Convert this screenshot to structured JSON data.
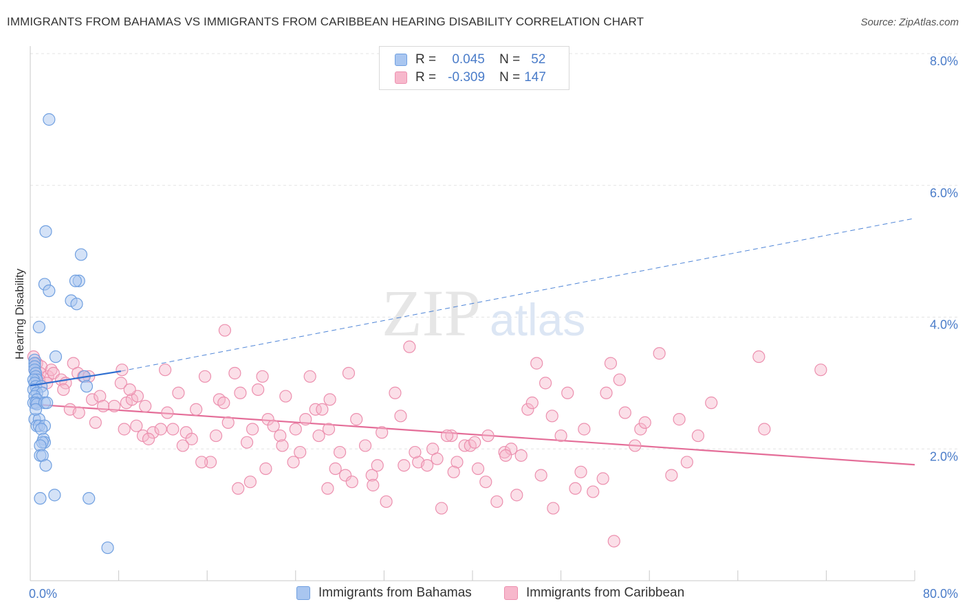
{
  "title": "IMMIGRANTS FROM BAHAMAS VS IMMIGRANTS FROM CARIBBEAN HEARING DISABILITY CORRELATION CHART",
  "source": "Source: ZipAtlas.com",
  "watermark": {
    "zip": "ZIP",
    "atlas": "atlas"
  },
  "legend": {
    "r_label": "R =",
    "n_label": "N =",
    "rows": [
      {
        "r": "0.045",
        "n": "52",
        "color": "#a9c6f0",
        "border": "#6f9fe0"
      },
      {
        "r": "-0.309",
        "n": "147",
        "color": "#f7b8cc",
        "border": "#ec8fae"
      }
    ]
  },
  "bottom_legend": {
    "bahamas": "Immigrants from Bahamas",
    "caribbean": "Immigrants from Caribbean"
  },
  "colors": {
    "blue_fill": "#a9c6f0",
    "blue_stroke": "#6f9fe0",
    "blue_line": "#2f6fd0",
    "pink_fill": "#f7b8cc",
    "pink_stroke": "#ec8fae",
    "pink_line": "#e46d98",
    "tick_text": "#4a7cc9"
  },
  "chart_data": {
    "type": "scatter",
    "ylabel": "Hearing Disability",
    "x_ticks": [
      "0.0%",
      "80.0%"
    ],
    "y_ticks": [
      "2.0%",
      "4.0%",
      "6.0%",
      "8.0%"
    ],
    "xlim": [
      0,
      80
    ],
    "ylim": [
      0,
      8
    ],
    "grid": true,
    "legend_position": "top-center",
    "series": [
      {
        "name": "Immigrants from Bahamas",
        "points": [
          [
            1.7,
            7.0
          ],
          [
            1.4,
            5.3
          ],
          [
            4.6,
            4.95
          ],
          [
            1.3,
            4.5
          ],
          [
            4.4,
            4.55
          ],
          [
            4.1,
            4.55
          ],
          [
            1.7,
            4.4
          ],
          [
            3.7,
            4.25
          ],
          [
            4.2,
            4.2
          ],
          [
            0.8,
            3.85
          ],
          [
            2.3,
            3.4
          ],
          [
            0.4,
            3.35
          ],
          [
            0.4,
            3.3
          ],
          [
            0.4,
            3.25
          ],
          [
            0.4,
            3.2
          ],
          [
            0.5,
            3.15
          ],
          [
            0.5,
            3.1
          ],
          [
            0.6,
            3.05
          ],
          [
            0.3,
            3.05
          ],
          [
            0.4,
            3.0
          ],
          [
            0.5,
            2.95
          ],
          [
            1.0,
            2.95
          ],
          [
            4.9,
            3.1
          ],
          [
            5.1,
            2.95
          ],
          [
            0.3,
            2.9
          ],
          [
            0.6,
            2.85
          ],
          [
            1.1,
            2.85
          ],
          [
            0.4,
            2.8
          ],
          [
            0.6,
            2.75
          ],
          [
            0.3,
            2.7
          ],
          [
            0.5,
            2.7
          ],
          [
            0.6,
            2.68
          ],
          [
            1.3,
            2.7
          ],
          [
            1.5,
            2.7
          ],
          [
            0.4,
            2.45
          ],
          [
            0.8,
            2.45
          ],
          [
            0.6,
            2.35
          ],
          [
            0.8,
            2.35
          ],
          [
            1.3,
            2.35
          ],
          [
            1.0,
            2.3
          ],
          [
            1.2,
            2.15
          ],
          [
            1.3,
            2.1
          ],
          [
            1.1,
            2.1
          ],
          [
            0.9,
            2.05
          ],
          [
            0.9,
            1.9
          ],
          [
            1.1,
            1.9
          ],
          [
            1.4,
            1.75
          ],
          [
            2.2,
            1.3
          ],
          [
            0.9,
            1.25
          ],
          [
            5.3,
            1.25
          ],
          [
            7.0,
            0.5
          ],
          [
            0.5,
            2.6
          ]
        ],
        "trend": {
          "x": [
            0,
            8.2
          ],
          "y": [
            2.96,
            3.18
          ],
          "dashed_extension": {
            "x": [
              8.2,
              80
            ],
            "y": [
              3.18,
              5.5
            ]
          }
        }
      },
      {
        "name": "Immigrants from Caribbean",
        "points": [
          [
            0.3,
            3.4
          ],
          [
            0.6,
            3.3
          ],
          [
            1.0,
            3.25
          ],
          [
            0.4,
            3.2
          ],
          [
            0.9,
            3.15
          ],
          [
            1.6,
            3.1
          ],
          [
            0.8,
            3.05
          ],
          [
            1.9,
            3.2
          ],
          [
            2.1,
            3.15
          ],
          [
            1.5,
            3.0
          ],
          [
            2.8,
            3.05
          ],
          [
            3.2,
            3.0
          ],
          [
            3.9,
            3.3
          ],
          [
            4.3,
            3.15
          ],
          [
            4.8,
            3.1
          ],
          [
            5.3,
            3.1
          ],
          [
            8.3,
            3.2
          ],
          [
            3.6,
            2.6
          ],
          [
            3.0,
            2.9
          ],
          [
            5.6,
            2.75
          ],
          [
            6.3,
            2.8
          ],
          [
            6.6,
            2.65
          ],
          [
            4.4,
            2.55
          ],
          [
            5.9,
            2.4
          ],
          [
            7.6,
            2.65
          ],
          [
            8.2,
            3.0
          ],
          [
            8.7,
            2.7
          ],
          [
            9.2,
            2.75
          ],
          [
            9.7,
            2.8
          ],
          [
            8.5,
            2.3
          ],
          [
            9.6,
            2.35
          ],
          [
            10.2,
            2.2
          ],
          [
            11.1,
            2.25
          ],
          [
            10.7,
            2.15
          ],
          [
            10.4,
            2.65
          ],
          [
            11.8,
            2.3
          ],
          [
            12.2,
            3.2
          ],
          [
            12.9,
            2.3
          ],
          [
            13.4,
            2.85
          ],
          [
            14.1,
            2.25
          ],
          [
            14.6,
            2.15
          ],
          [
            15.0,
            2.6
          ],
          [
            15.8,
            3.1
          ],
          [
            16.8,
            2.2
          ],
          [
            17.1,
            2.75
          ],
          [
            17.5,
            2.7
          ],
          [
            17.9,
            2.4
          ],
          [
            18.5,
            3.15
          ],
          [
            19.0,
            2.85
          ],
          [
            19.6,
            2.1
          ],
          [
            20.1,
            2.3
          ],
          [
            20.6,
            2.9
          ],
          [
            21.0,
            3.1
          ],
          [
            21.5,
            2.45
          ],
          [
            22.0,
            2.35
          ],
          [
            22.6,
            2.2
          ],
          [
            23.1,
            2.8
          ],
          [
            24.0,
            2.3
          ],
          [
            24.4,
            1.95
          ],
          [
            25.3,
            3.1
          ],
          [
            25.8,
            2.6
          ],
          [
            26.4,
            2.6
          ],
          [
            27.0,
            2.3
          ],
          [
            27.6,
            1.7
          ],
          [
            27.1,
            2.75
          ],
          [
            28.0,
            1.95
          ],
          [
            28.8,
            3.15
          ],
          [
            29.5,
            2.45
          ],
          [
            30.3,
            2.05
          ],
          [
            30.9,
            1.6
          ],
          [
            31.4,
            1.75
          ],
          [
            32.2,
            1.2
          ],
          [
            33.0,
            2.85
          ],
          [
            33.5,
            2.5
          ],
          [
            34.3,
            3.55
          ],
          [
            35.1,
            1.8
          ],
          [
            35.9,
            1.75
          ],
          [
            36.4,
            2.0
          ],
          [
            37.2,
            1.1
          ],
          [
            38.1,
            2.2
          ],
          [
            38.6,
            1.8
          ],
          [
            39.3,
            2.05
          ],
          [
            39.8,
            2.05
          ],
          [
            40.5,
            1.7
          ],
          [
            41.4,
            2.2
          ],
          [
            42.2,
            1.2
          ],
          [
            42.9,
            1.95
          ],
          [
            43.5,
            2.0
          ],
          [
            44.0,
            1.3
          ],
          [
            44.4,
            1.9
          ],
          [
            45.0,
            2.6
          ],
          [
            45.4,
            2.7
          ],
          [
            45.8,
            3.3
          ],
          [
            46.6,
            3.0
          ],
          [
            47.2,
            2.5
          ],
          [
            48.0,
            2.2
          ],
          [
            48.6,
            2.85
          ],
          [
            49.3,
            1.4
          ],
          [
            49.8,
            1.65
          ],
          [
            50.1,
            2.3
          ],
          [
            51.8,
            1.55
          ],
          [
            52.1,
            2.85
          ],
          [
            52.5,
            3.3
          ],
          [
            53.3,
            3.05
          ],
          [
            53.8,
            2.55
          ],
          [
            54.7,
            2.05
          ],
          [
            55.2,
            2.3
          ],
          [
            55.6,
            2.4
          ],
          [
            56.9,
            3.45
          ],
          [
            58.0,
            1.6
          ],
          [
            58.7,
            2.45
          ],
          [
            59.4,
            1.8
          ],
          [
            60.4,
            2.2
          ],
          [
            61.6,
            2.7
          ],
          [
            65.9,
            3.4
          ],
          [
            66.4,
            2.3
          ],
          [
            71.5,
            3.2
          ],
          [
            17.6,
            3.8
          ],
          [
            16.3,
            1.8
          ],
          [
            18.8,
            1.4
          ],
          [
            19.9,
            1.5
          ],
          [
            21.3,
            1.7
          ],
          [
            23.8,
            1.8
          ],
          [
            26.9,
            1.4
          ],
          [
            28.5,
            1.6
          ],
          [
            29.1,
            1.5
          ],
          [
            31.0,
            1.45
          ],
          [
            33.8,
            1.75
          ],
          [
            36.8,
            1.85
          ],
          [
            38.3,
            1.65
          ],
          [
            41.2,
            1.5
          ],
          [
            43.0,
            1.9
          ],
          [
            46.2,
            1.6
          ],
          [
            47.3,
            1.1
          ],
          [
            50.9,
            1.35
          ],
          [
            52.8,
            0.6
          ],
          [
            9.0,
            2.9
          ],
          [
            12.4,
            2.55
          ],
          [
            13.8,
            2.05
          ],
          [
            15.5,
            1.8
          ],
          [
            22.8,
            2.05
          ],
          [
            24.9,
            2.45
          ],
          [
            26.1,
            2.2
          ],
          [
            31.8,
            2.25
          ],
          [
            34.8,
            1.95
          ],
          [
            37.7,
            2.2
          ],
          [
            40.2,
            2.1
          ]
        ],
        "trend": {
          "x": [
            0,
            80
          ],
          "y": [
            2.68,
            1.76
          ]
        }
      }
    ]
  }
}
